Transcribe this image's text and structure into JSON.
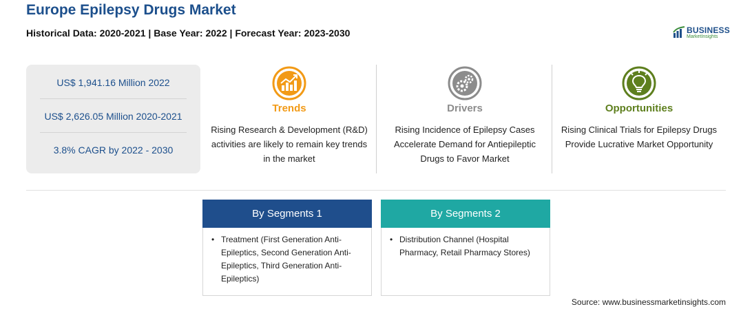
{
  "header": {
    "title": "Europe Epilepsy Drugs Market",
    "subtitle": "Historical Data: 2020-2021 | Base Year: 2022 | Forecast Year: 2023-2030"
  },
  "logo": {
    "main": "BUSINESS",
    "sub": "MarketInsights",
    "colors": {
      "primary": "#1e4f8a",
      "accent": "#3b8c3b"
    }
  },
  "stats": [
    "US$ 1,941.16 Million 2022",
    "US$ 2,626.05 Million 2020-2021",
    "3.8% CAGR by 2022 - 2030"
  ],
  "cards": [
    {
      "label": "Trends",
      "icon": "trend-chart-icon",
      "color": "#f29a16",
      "text": "Rising Research & Development (R&D) activities are likely to remain key trends in the market"
    },
    {
      "label": "Drivers",
      "icon": "gears-icon",
      "color": "#8c8c8c",
      "text": "Rising Incidence of Epilepsy Cases Accelerate Demand for Antiepileptic Drugs to Favor Market"
    },
    {
      "label": "Opportunities",
      "icon": "lightbulb-icon",
      "color": "#5e7f1e",
      "text": "Rising Clinical Trials for Epilepsy Drugs Provide Lucrative Market Opportunity"
    }
  ],
  "segments": [
    {
      "title": "By Segments 1",
      "color": "#1f4e8c",
      "items": [
        "Treatment (First Generation Anti-Epileptics, Second Generation Anti-Epileptics, Third Generation Anti-Epileptics)"
      ]
    },
    {
      "title": "By Segments 2",
      "color": "#1fa8a3",
      "items": [
        "Distribution Channel (Hospital Pharmacy, Retail Pharmacy Stores)"
      ]
    }
  ],
  "footer": {
    "source": "Source: www.businessmarketinsights.com"
  }
}
